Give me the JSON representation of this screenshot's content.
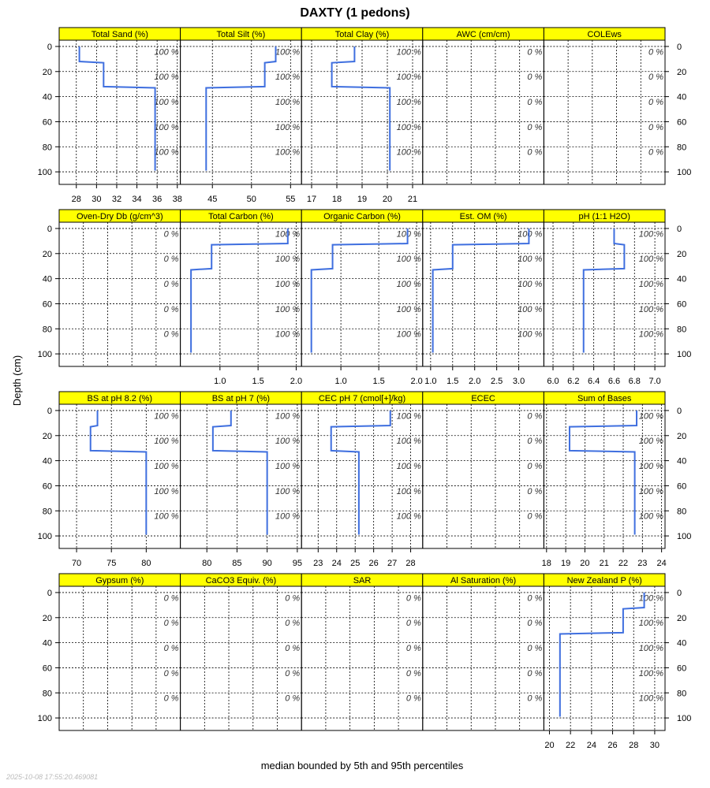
{
  "chart_data": {
    "type": "line",
    "title": "DAXTY (1 pedons)",
    "ylabel": "Depth (cm)",
    "xlabel": "median bounded by 5th and 95th percentiles",
    "timestamp": "2025-10-08 17:55:20.469081",
    "ylim": [
      -5,
      110
    ],
    "yticks": [
      0,
      20,
      40,
      60,
      80,
      100
    ],
    "depth_tops": [
      0,
      13,
      33
    ],
    "depth_bottoms": [
      12,
      32,
      99
    ],
    "line_color": "#3F6FDF",
    "strip_color": "#FFFF00",
    "panels": [
      {
        "name": "Total Sand (%)",
        "xlim": [
          26.3,
          38.3
        ],
        "xticks": [
          28,
          30,
          32,
          34,
          36,
          38
        ],
        "values": [
          28.3,
          30.7,
          35.8
        ],
        "pct": "100 %"
      },
      {
        "name": "Total Silt (%)",
        "xlim": [
          40.9,
          56.4
        ],
        "xticks": [
          45,
          50,
          55
        ],
        "values": [
          53.1,
          51.7,
          44.2
        ],
        "pct": "100 %"
      },
      {
        "name": "Total Clay (%)",
        "xlim": [
          16.6,
          21.4
        ],
        "xticks": [
          17,
          18,
          19,
          20,
          21
        ],
        "values": [
          18.7,
          17.8,
          20.1
        ],
        "pct": "100 %"
      },
      {
        "name": "AWC (cm/cm)",
        "xlim": null,
        "xticks": [],
        "values": [],
        "pct": "0 %"
      },
      {
        "name": "COLEws",
        "xlim": null,
        "xticks": [],
        "values": [],
        "pct": "0 %"
      },
      {
        "name": "Oven-Dry Db (g/cm^3)",
        "xlim": null,
        "xticks": [],
        "values": [],
        "pct": "0 %"
      },
      {
        "name": "Total Carbon (%)",
        "xlim": [
          0.48,
          2.07
        ],
        "xticks": [
          "1.0",
          "1.5",
          "2.0"
        ],
        "values": [
          1.89,
          0.89,
          0.62
        ],
        "pct": "100 %"
      },
      {
        "name": "Organic Carbon (%)",
        "xlim": [
          0.48,
          2.08
        ],
        "xticks": [
          "1.0",
          "1.5",
          "2.0"
        ],
        "values": [
          1.88,
          0.89,
          0.61
        ],
        "pct": "100 %"
      },
      {
        "name": "Est. OM (%)",
        "xlim": [
          0.82,
          3.57
        ],
        "xticks": [
          "1.0",
          "1.5",
          "2.0",
          "2.5",
          "3.0"
        ],
        "values": [
          3.23,
          1.5,
          1.05
        ],
        "pct": "100 %"
      },
      {
        "name": "pH (1:1 H2O)",
        "xlim": [
          5.91,
          7.1
        ],
        "xticks": [
          "6.0",
          "6.2",
          "6.4",
          "6.6",
          "6.8",
          "7.0"
        ],
        "values": [
          6.6,
          6.7,
          6.3
        ],
        "pct": "100 %"
      },
      {
        "name": "BS at pH 8.2 (%)",
        "xlim": [
          67.5,
          84.9
        ],
        "xticks": [
          70,
          75,
          80
        ],
        "values": [
          73,
          72,
          80
        ],
        "pct": "100 %"
      },
      {
        "name": "BS at pH 7 (%)",
        "xlim": [
          75.6,
          95.7
        ],
        "xticks": [
          80,
          85,
          90,
          95
        ],
        "values": [
          84,
          81,
          90
        ],
        "pct": "100 %"
      },
      {
        "name": "CEC pH 7 (cmol[+]/kg)",
        "xlim": [
          22.1,
          28.65
        ],
        "xticks": [
          23,
          24,
          25,
          26,
          27,
          28
        ],
        "values": [
          26.9,
          23.7,
          25.2
        ],
        "pct": "100 %"
      },
      {
        "name": "ECEC",
        "xlim": null,
        "xticks": [],
        "values": [],
        "pct": "0 %"
      },
      {
        "name": "Sum of Bases",
        "xlim": [
          17.86,
          24.18
        ],
        "xticks": [
          18,
          19,
          20,
          21,
          22,
          23,
          24
        ],
        "values": [
          22.7,
          19.2,
          22.6
        ],
        "pct": "100 %"
      },
      {
        "name": "Gypsum (%)",
        "xlim": null,
        "xticks": [],
        "values": [],
        "pct": "0 %"
      },
      {
        "name": "CaCO3 Equiv. (%)",
        "xlim": null,
        "xticks": [],
        "values": [],
        "pct": "0 %"
      },
      {
        "name": "SAR",
        "xlim": null,
        "xticks": [],
        "values": [],
        "pct": "0 %"
      },
      {
        "name": "Al Saturation (%)",
        "xlim": null,
        "xticks": [],
        "values": [],
        "pct": "0 %"
      },
      {
        "name": "New Zealand P (%)",
        "xlim": [
          19.47,
          30.98
        ],
        "xticks": [
          20,
          22,
          24,
          26,
          28,
          30
        ],
        "values": [
          29,
          27,
          21
        ],
        "pct": "100 %"
      }
    ]
  }
}
